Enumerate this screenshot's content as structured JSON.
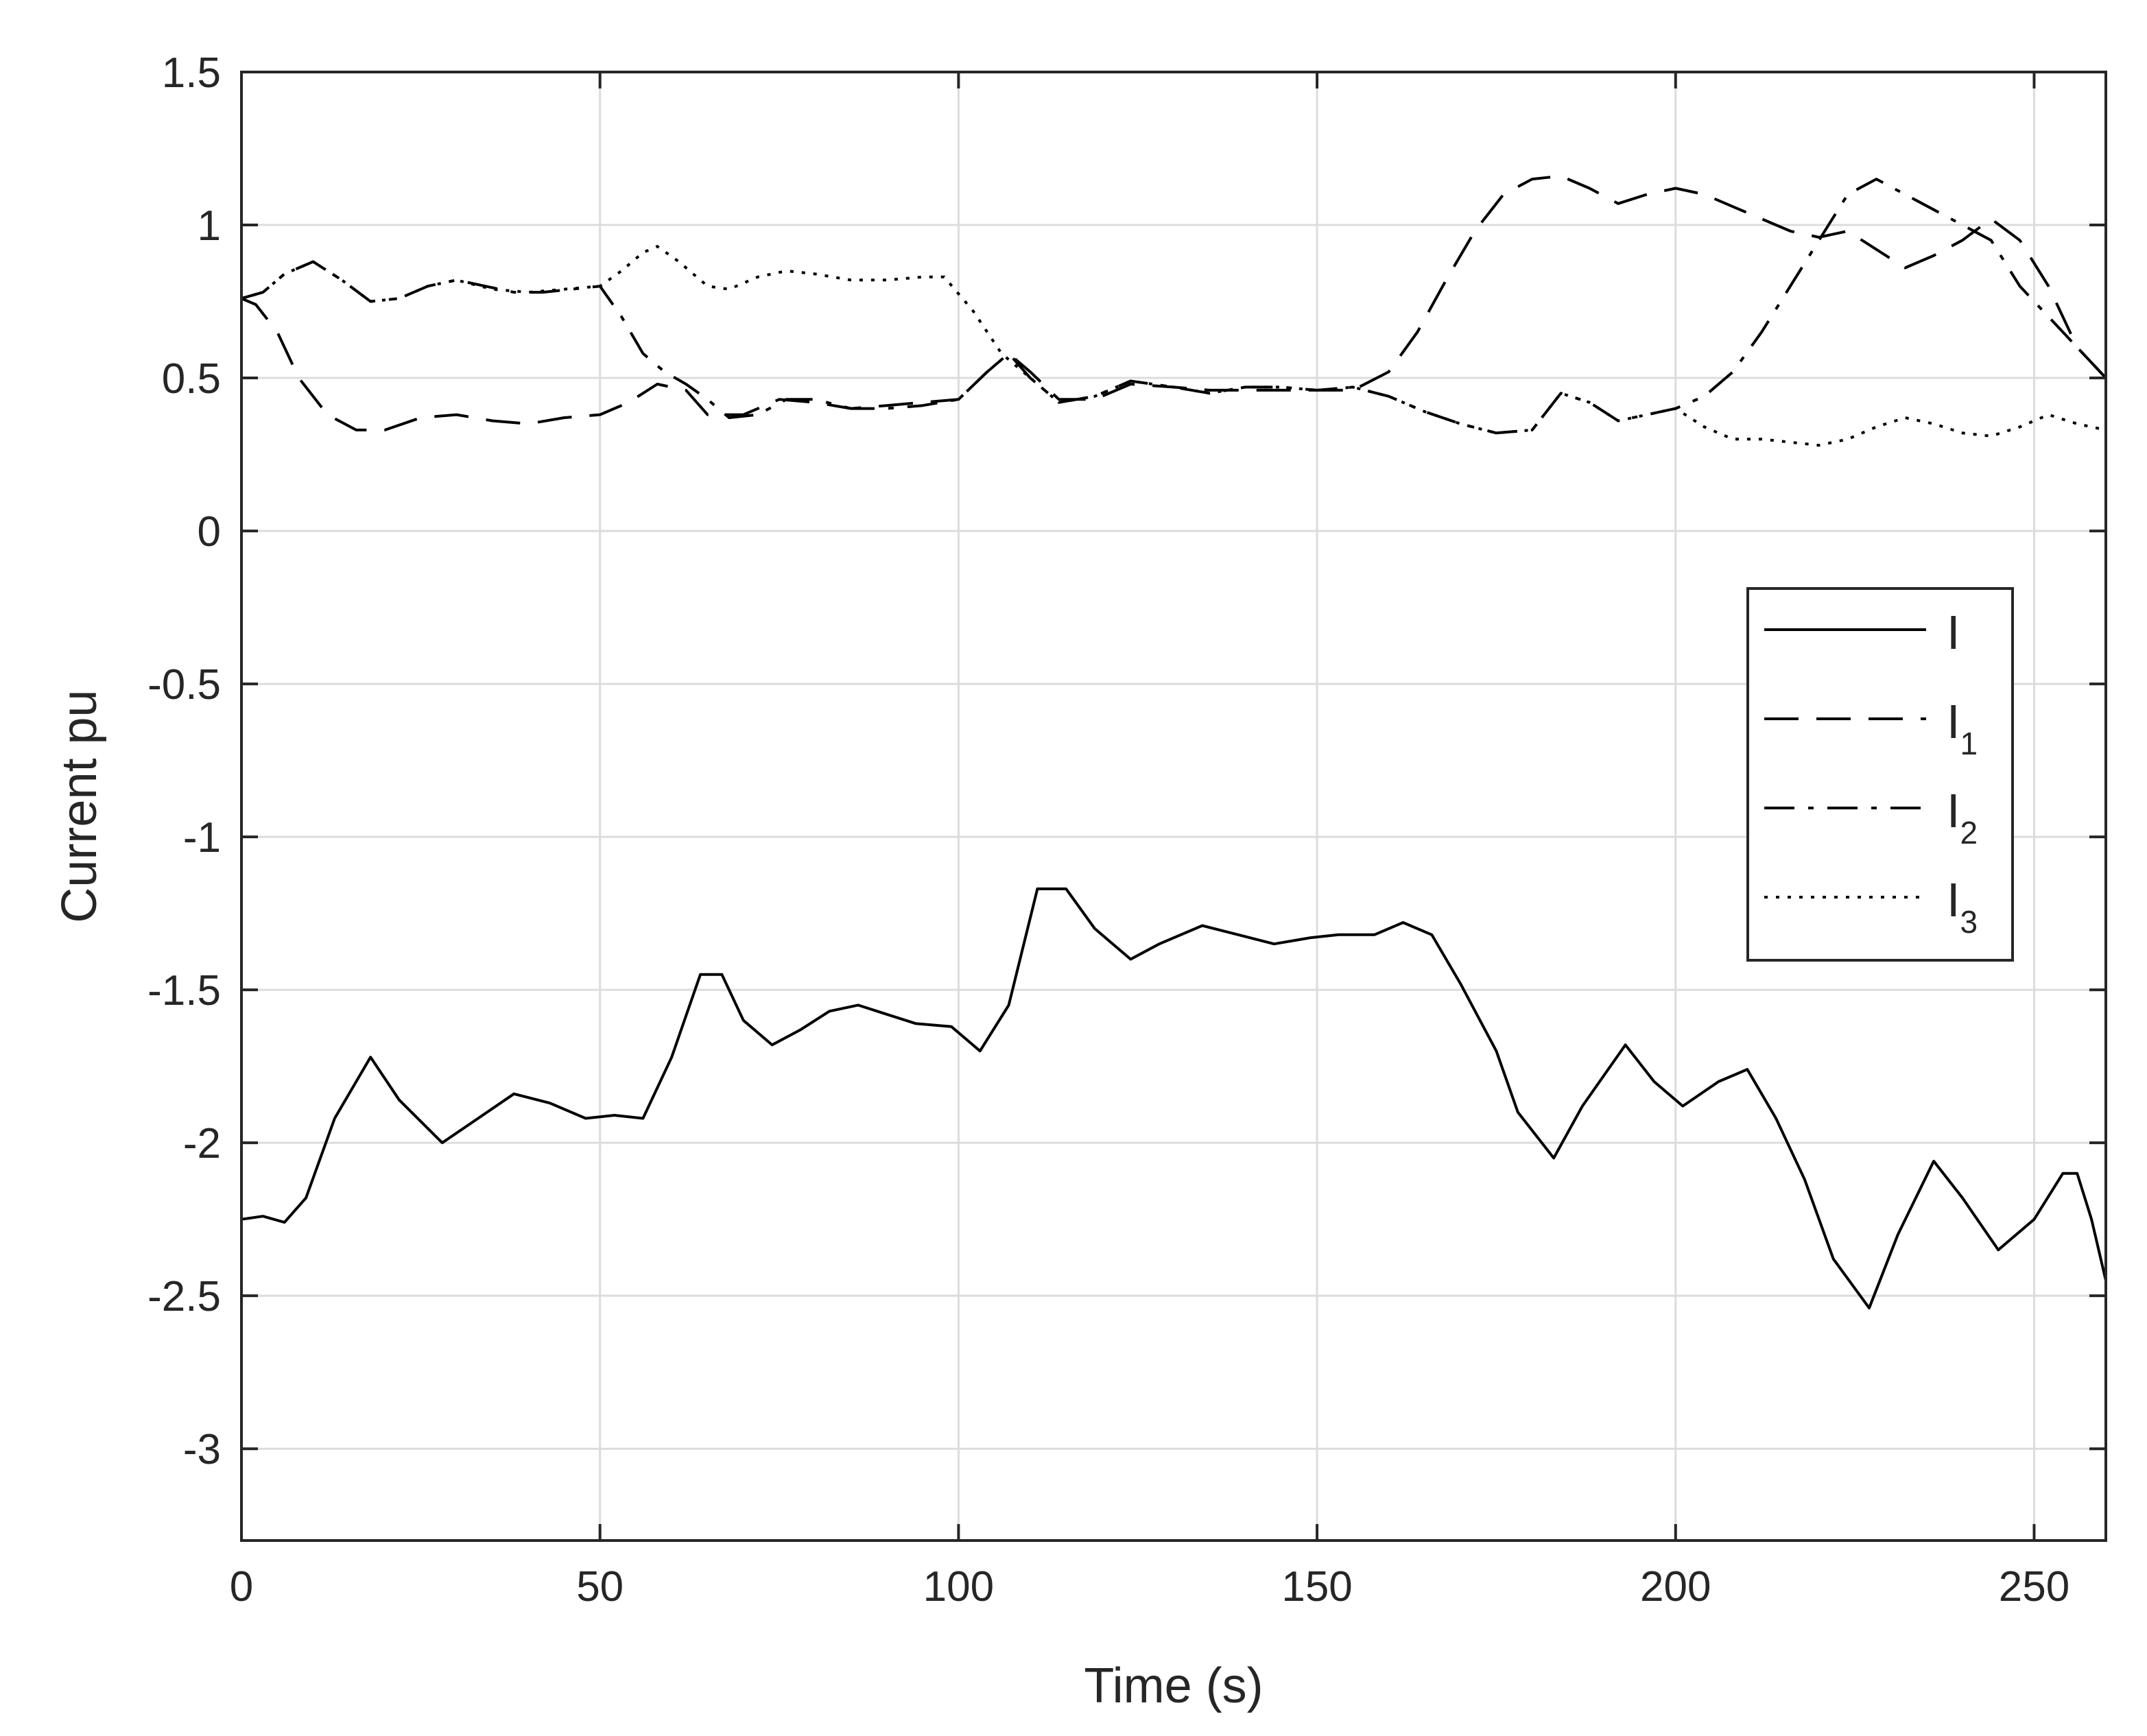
{
  "chart_data": {
    "type": "line",
    "title": "",
    "xlabel": "Time (s)",
    "ylabel": "Current pu",
    "xlim": [
      0,
      260
    ],
    "ylim": [
      -3.3,
      1.5
    ],
    "xticks": [
      0,
      50,
      100,
      150,
      200,
      250
    ],
    "xtick_labels": [
      "0",
      "50",
      "100",
      "150",
      "200",
      "250"
    ],
    "yticks": [
      1.5,
      1,
      0.5,
      0,
      -0.5,
      -1,
      -1.5,
      -2,
      -2.5,
      -3
    ],
    "ytick_labels": [
      "1.5",
      "1",
      "0.5",
      "0",
      "-0.5",
      "-1",
      "-1.5",
      "-2",
      "-2.5",
      "-3"
    ],
    "grid": true,
    "legend_position": "right",
    "line_color": "#000000",
    "series": [
      {
        "name": "I",
        "name_sub": "",
        "style": "solid",
        "x": [
          0,
          3,
          6,
          9,
          13,
          18,
          22,
          28,
          33,
          38,
          43,
          48,
          52,
          56,
          60,
          64,
          67,
          70,
          74,
          78,
          82,
          86,
          90,
          94,
          99,
          103,
          107,
          111,
          115,
          119,
          124,
          128,
          134,
          139,
          144,
          149,
          153,
          158,
          162,
          166,
          170,
          175,
          178,
          183,
          187,
          193,
          197,
          201,
          206,
          210,
          214,
          218,
          222,
          227,
          231,
          236,
          240,
          245,
          250,
          254,
          256,
          258,
          260
        ],
        "y": [
          -2.25,
          -2.24,
          -2.26,
          -2.18,
          -1.92,
          -1.72,
          -1.86,
          -2.0,
          -1.92,
          -1.84,
          -1.87,
          -1.92,
          -1.91,
          -1.92,
          -1.72,
          -1.45,
          -1.45,
          -1.6,
          -1.68,
          -1.63,
          -1.57,
          -1.55,
          -1.58,
          -1.61,
          -1.62,
          -1.7,
          -1.55,
          -1.17,
          -1.17,
          -1.3,
          -1.4,
          -1.35,
          -1.29,
          -1.32,
          -1.35,
          -1.33,
          -1.32,
          -1.32,
          -1.28,
          -1.32,
          -1.48,
          -1.7,
          -1.9,
          -2.05,
          -1.88,
          -1.68,
          -1.8,
          -1.88,
          -1.8,
          -1.76,
          -1.92,
          -2.12,
          -2.38,
          -2.54,
          -2.3,
          -2.06,
          -2.18,
          -2.35,
          -2.25,
          -2.1,
          -2.1,
          -2.25,
          -2.45
        ]
      },
      {
        "name": "I",
        "name_sub": "1",
        "style": "dashed",
        "x": [
          0,
          2,
          5,
          8,
          12,
          16,
          20,
          25,
          30,
          35,
          40,
          45,
          50,
          54,
          58,
          62,
          65,
          70,
          75,
          80,
          85,
          90,
          95,
          100,
          104,
          107,
          110,
          114,
          119,
          124,
          130,
          135,
          140,
          145,
          150,
          155,
          160,
          164,
          168,
          172,
          176,
          180,
          184,
          188,
          192,
          196,
          200,
          204,
          208,
          212,
          216,
          220,
          224,
          228,
          232,
          236,
          240,
          244,
          248,
          252,
          256,
          260
        ],
        "y": [
          0.76,
          0.74,
          0.65,
          0.5,
          0.38,
          0.33,
          0.33,
          0.37,
          0.38,
          0.36,
          0.35,
          0.37,
          0.38,
          0.42,
          0.48,
          0.46,
          0.38,
          0.38,
          0.43,
          0.42,
          0.4,
          0.41,
          0.42,
          0.43,
          0.52,
          0.58,
          0.52,
          0.43,
          0.43,
          0.48,
          0.47,
          0.46,
          0.46,
          0.46,
          0.46,
          0.46,
          0.52,
          0.65,
          0.82,
          0.98,
          1.1,
          1.15,
          1.16,
          1.12,
          1.07,
          1.1,
          1.12,
          1.1,
          1.06,
          1.02,
          0.98,
          0.96,
          0.98,
          0.92,
          0.86,
          0.9,
          0.95,
          1.02,
          0.95,
          0.8,
          0.6,
          0.5
        ]
      },
      {
        "name": "I",
        "name_sub": "2",
        "style": "dashdot",
        "x": [
          0,
          3,
          6,
          10,
          14,
          18,
          22,
          26,
          30,
          34,
          38,
          42,
          46,
          50,
          53,
          56,
          59,
          62,
          65,
          68,
          72,
          76,
          80,
          85,
          90,
          95,
          100,
          104,
          107,
          110,
          114,
          119,
          124,
          130,
          135,
          140,
          145,
          150,
          155,
          160,
          165,
          170,
          175,
          180,
          184,
          188,
          192,
          196,
          200,
          204,
          208,
          212,
          216,
          220,
          224,
          228,
          232,
          236,
          240,
          244,
          248,
          252,
          256,
          260
        ],
        "y": [
          0.76,
          0.78,
          0.84,
          0.88,
          0.82,
          0.75,
          0.76,
          0.8,
          0.82,
          0.8,
          0.78,
          0.78,
          0.79,
          0.8,
          0.7,
          0.58,
          0.52,
          0.48,
          0.43,
          0.37,
          0.38,
          0.43,
          0.43,
          0.4,
          0.4,
          0.41,
          0.43,
          0.52,
          0.58,
          0.5,
          0.42,
          0.44,
          0.49,
          0.47,
          0.45,
          0.47,
          0.47,
          0.46,
          0.47,
          0.44,
          0.39,
          0.35,
          0.32,
          0.33,
          0.45,
          0.42,
          0.36,
          0.38,
          0.4,
          0.44,
          0.52,
          0.65,
          0.8,
          0.95,
          1.1,
          1.15,
          1.1,
          1.05,
          1.0,
          0.95,
          0.8,
          0.7,
          0.6,
          0.5
        ]
      },
      {
        "name": "I",
        "name_sub": "3",
        "style": "dotted",
        "x": [
          0,
          3,
          6,
          10,
          14,
          18,
          22,
          26,
          30,
          35,
          40,
          45,
          50,
          53,
          56,
          58,
          61,
          65,
          68,
          72,
          76,
          80,
          85,
          90,
          95,
          98,
          102,
          106,
          110,
          114,
          119,
          124,
          130,
          135,
          140,
          145,
          150,
          155,
          160,
          165,
          170,
          175,
          180,
          184,
          188,
          192,
          196,
          200,
          204,
          208,
          212,
          216,
          220,
          224,
          228,
          232,
          236,
          240,
          244,
          248,
          252,
          256,
          260
        ],
        "y": [
          0.76,
          0.78,
          0.84,
          0.88,
          0.82,
          0.75,
          0.76,
          0.8,
          0.82,
          0.79,
          0.78,
          0.79,
          0.8,
          0.85,
          0.91,
          0.93,
          0.88,
          0.8,
          0.79,
          0.83,
          0.85,
          0.84,
          0.82,
          0.82,
          0.83,
          0.83,
          0.72,
          0.58,
          0.5,
          0.42,
          0.44,
          0.49,
          0.47,
          0.45,
          0.47,
          0.47,
          0.46,
          0.47,
          0.44,
          0.39,
          0.35,
          0.32,
          0.33,
          0.45,
          0.42,
          0.36,
          0.38,
          0.4,
          0.34,
          0.3,
          0.3,
          0.29,
          0.28,
          0.3,
          0.34,
          0.37,
          0.35,
          0.32,
          0.31,
          0.34,
          0.38,
          0.35,
          0.33
        ]
      }
    ]
  }
}
